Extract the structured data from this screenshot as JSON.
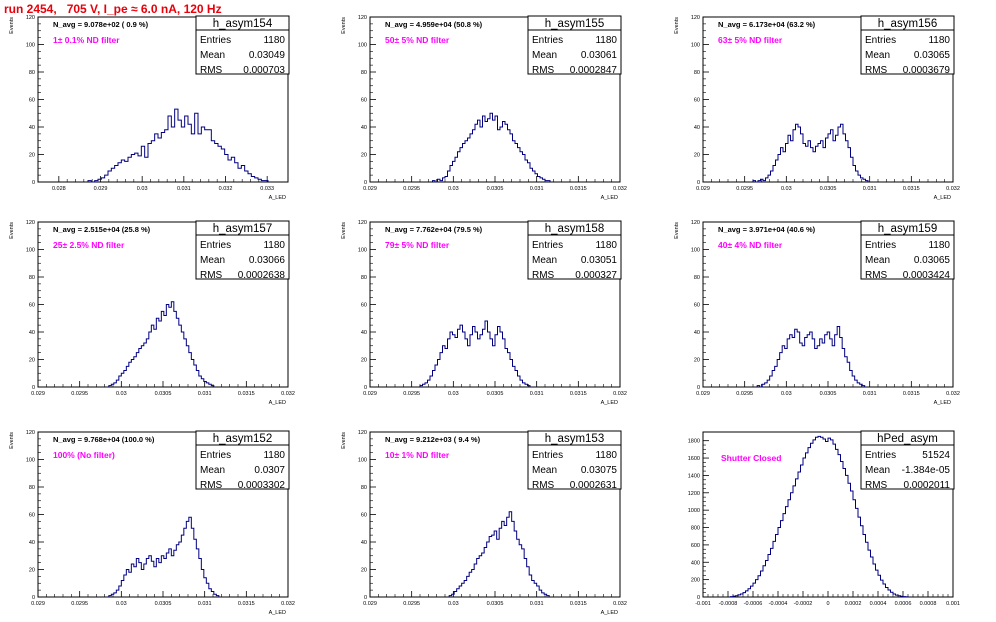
{
  "page_title": "run 2454,   705 V, I_pe ≈ 6.0 nA, 120 Hz",
  "colors": {
    "hist": "#000080",
    "filter_label": "#ff00ff",
    "title": "#e8000b"
  },
  "chart_data": [
    {
      "type": "histogram",
      "hist_name": "h_asym154",
      "navg_text": "N_avg = 9.078e+02 ( 0.9 %)",
      "filter_text": "1± 0.1% ND filter",
      "stats": {
        "entries": "1180",
        "mean": "0.03049",
        "rms": "0.000703"
      },
      "stat_labels": [
        "Entries",
        "Mean",
        "RMS"
      ],
      "ylabel": "Events",
      "xlabel": "A_LED",
      "xlim": [
        0.0275,
        0.0335
      ],
      "ylim": [
        0,
        120
      ],
      "xticks": [
        "0.028",
        "0.029",
        "0.03",
        "0.031",
        "0.032",
        "0.033"
      ],
      "xtick_values": [
        0.028,
        0.029,
        0.03,
        0.031,
        0.032,
        0.033
      ],
      "yticks": [
        0,
        20,
        40,
        60,
        80,
        100,
        120
      ],
      "bin_start": 0.0287,
      "bin_width": 8e-05,
      "counts": [
        1,
        0,
        1,
        2,
        3,
        5,
        8,
        10,
        12,
        14,
        16,
        15,
        18,
        20,
        21,
        19,
        26,
        18,
        28,
        30,
        35,
        32,
        36,
        38,
        48,
        40,
        53,
        45,
        40,
        48,
        42,
        35,
        50,
        35,
        40,
        38,
        38,
        30,
        28,
        26,
        24,
        20,
        16,
        18,
        14,
        10,
        12,
        8,
        6,
        4,
        3,
        2,
        1,
        1
      ]
    },
    {
      "type": "histogram",
      "hist_name": "h_asym155",
      "navg_text": "N_avg = 4.959e+04 (50.8 %)",
      "filter_text": "50± 5% ND filter",
      "stats": {
        "entries": "1180",
        "mean": "0.03061",
        "rms": "0.0002847"
      },
      "stat_labels": [
        "Entries",
        "Mean",
        "RMS"
      ],
      "ylabel": "Events",
      "xlabel": "A_LED",
      "xlim": [
        0.029,
        0.032
      ],
      "ylim": [
        0,
        120
      ],
      "xticks": [
        "0.029",
        "0.0295",
        "0.03",
        "0.0305",
        "0.031",
        "0.0315",
        "0.032"
      ],
      "xtick_values": [
        0.029,
        0.0295,
        0.03,
        0.0305,
        0.031,
        0.0315,
        0.032
      ],
      "yticks": [
        0,
        20,
        40,
        60,
        80,
        100,
        120
      ],
      "bin_start": 0.02975,
      "bin_width": 3e-05,
      "counts": [
        1,
        0,
        2,
        1,
        3,
        4,
        8,
        12,
        15,
        18,
        22,
        25,
        28,
        30,
        32,
        35,
        38,
        42,
        45,
        40,
        48,
        44,
        46,
        50,
        45,
        48,
        38,
        40,
        44,
        42,
        38,
        35,
        30,
        28,
        25,
        22,
        20,
        16,
        14,
        10,
        8,
        6,
        4,
        3,
        2,
        1,
        1
      ]
    },
    {
      "type": "histogram",
      "hist_name": "h_asym156",
      "navg_text": "N_avg = 6.173e+04 (63.2 %)",
      "filter_text": "63± 5% ND filter",
      "stats": {
        "entries": "1180",
        "mean": "0.03065",
        "rms": "0.0003679"
      },
      "stat_labels": [
        "Entries",
        "Mean",
        "RMS"
      ],
      "ylabel": "Events",
      "xlabel": "A_LED",
      "xlim": [
        0.029,
        0.032
      ],
      "ylim": [
        0,
        120
      ],
      "xticks": [
        "0.029",
        "0.0295",
        "0.03",
        "0.0305",
        "0.031",
        "0.0315",
        "0.032"
      ],
      "xtick_values": [
        0.029,
        0.0295,
        0.03,
        0.0305,
        0.031,
        0.0315,
        0.032
      ],
      "yticks": [
        0,
        20,
        40,
        60,
        80,
        100,
        120
      ],
      "bin_start": 0.0296,
      "bin_width": 3e-05,
      "counts": [
        1,
        0,
        1,
        2,
        1,
        3,
        5,
        8,
        12,
        16,
        20,
        25,
        22,
        28,
        34,
        30,
        38,
        42,
        40,
        35,
        28,
        26,
        30,
        25,
        22,
        26,
        28,
        30,
        25,
        32,
        35,
        38,
        30,
        34,
        40,
        42,
        35,
        30,
        25,
        18,
        12,
        8,
        5,
        3,
        2,
        1
      ]
    },
    {
      "type": "histogram",
      "hist_name": "h_asym157",
      "navg_text": "N_avg = 2.515e+04 (25.8 %)",
      "filter_text": "25± 2.5% ND filter",
      "stats": {
        "entries": "1180",
        "mean": "0.03066",
        "rms": "0.0002638"
      },
      "stat_labels": [
        "Entries",
        "Mean",
        "RMS"
      ],
      "ylabel": "Events",
      "xlabel": "A_LED",
      "xlim": [
        0.029,
        0.032
      ],
      "ylim": [
        0,
        120
      ],
      "xticks": [
        "0.029",
        "0.0295",
        "0.03",
        "0.0305",
        "0.031",
        "0.0315",
        "0.032"
      ],
      "xtick_values": [
        0.029,
        0.0295,
        0.03,
        0.0305,
        0.031,
        0.0315,
        0.032
      ],
      "yticks": [
        0,
        20,
        40,
        60,
        80,
        100,
        120
      ],
      "bin_start": 0.02985,
      "bin_width": 3e-05,
      "counts": [
        1,
        2,
        3,
        5,
        8,
        10,
        12,
        15,
        18,
        20,
        22,
        25,
        28,
        30,
        32,
        35,
        40,
        45,
        42,
        50,
        48,
        55,
        52,
        60,
        58,
        62,
        55,
        50,
        45,
        40,
        35,
        30,
        25,
        20,
        16,
        12,
        8,
        6,
        4,
        3,
        2,
        1
      ]
    },
    {
      "type": "histogram",
      "hist_name": "h_asym158",
      "navg_text": "N_avg = 7.762e+04 (79.5 %)",
      "filter_text": "79± 5% ND filter",
      "stats": {
        "entries": "1180",
        "mean": "0.03051",
        "rms": "0.000327"
      },
      "stat_labels": [
        "Entries",
        "Mean",
        "RMS"
      ],
      "ylabel": "Events",
      "xlabel": "A_LED",
      "xlim": [
        0.029,
        0.032
      ],
      "ylim": [
        0,
        120
      ],
      "xticks": [
        "0.029",
        "0.0295",
        "0.03",
        "0.0305",
        "0.031",
        "0.0315",
        "0.032"
      ],
      "xtick_values": [
        0.029,
        0.0295,
        0.03,
        0.0305,
        0.031,
        0.0315,
        0.032
      ],
      "yticks": [
        0,
        20,
        40,
        60,
        80,
        100,
        120
      ],
      "bin_start": 0.0296,
      "bin_width": 3e-05,
      "counts": [
        1,
        2,
        3,
        5,
        8,
        12,
        16,
        20,
        25,
        30,
        28,
        35,
        40,
        38,
        36,
        42,
        45,
        40,
        35,
        30,
        38,
        44,
        40,
        35,
        38,
        42,
        48,
        40,
        35,
        30,
        38,
        44,
        40,
        35,
        28,
        25,
        20,
        15,
        12,
        8,
        5,
        3,
        2,
        1
      ]
    },
    {
      "type": "histogram",
      "hist_name": "h_asym159",
      "navg_text": "N_avg = 3.971e+04 (40.6 %)",
      "filter_text": "40± 4% ND filter",
      "stats": {
        "entries": "1180",
        "mean": "0.03065",
        "rms": "0.0003424"
      },
      "stat_labels": [
        "Entries",
        "Mean",
        "RMS"
      ],
      "ylabel": "Events",
      "xlabel": "A_LED",
      "xlim": [
        0.029,
        0.032
      ],
      "ylim": [
        0,
        120
      ],
      "xticks": [
        "0.029",
        "0.0295",
        "0.03",
        "0.0305",
        "0.031",
        "0.0315",
        "0.032"
      ],
      "xtick_values": [
        0.029,
        0.0295,
        0.03,
        0.0305,
        0.031,
        0.0315,
        0.032
      ],
      "yticks": [
        0,
        20,
        40,
        60,
        80,
        100,
        120
      ],
      "bin_start": 0.02965,
      "bin_width": 3e-05,
      "counts": [
        1,
        0,
        2,
        3,
        5,
        8,
        12,
        15,
        20,
        25,
        30,
        28,
        35,
        38,
        36,
        42,
        40,
        32,
        30,
        36,
        38,
        40,
        35,
        28,
        30,
        35,
        32,
        38,
        40,
        35,
        30,
        38,
        44,
        36,
        28,
        22,
        18,
        12,
        8,
        5,
        3,
        2,
        1
      ]
    },
    {
      "type": "histogram",
      "hist_name": "h_asym152",
      "navg_text": "N_avg = 9.768e+04 (100.0 %)",
      "filter_text": "100% (No filter)",
      "stats": {
        "entries": "1180",
        "mean": "0.0307",
        "rms": "0.0003302"
      },
      "stat_labels": [
        "Entries",
        "Mean",
        "RMS"
      ],
      "ylabel": "Events",
      "xlabel": "A_LED",
      "xlim": [
        0.029,
        0.032
      ],
      "ylim": [
        0,
        120
      ],
      "xticks": [
        "0.029",
        "0.0295",
        "0.03",
        "0.0305",
        "0.031",
        "0.0315",
        "0.032"
      ],
      "xtick_values": [
        0.029,
        0.0295,
        0.03,
        0.0305,
        0.031,
        0.0315,
        0.032
      ],
      "yticks": [
        0,
        20,
        40,
        60,
        80,
        100,
        120
      ],
      "bin_start": 0.02985,
      "bin_width": 3e-05,
      "counts": [
        1,
        2,
        3,
        5,
        8,
        12,
        16,
        20,
        18,
        24,
        22,
        28,
        25,
        20,
        24,
        28,
        30,
        26,
        22,
        28,
        25,
        30,
        28,
        32,
        35,
        30,
        34,
        38,
        40,
        45,
        50,
        55,
        58,
        50,
        42,
        35,
        28,
        20,
        14,
        10,
        6,
        4,
        2,
        1
      ]
    },
    {
      "type": "histogram",
      "hist_name": "h_asym153",
      "navg_text": "N_avg = 9.212e+03 ( 9.4 %)",
      "filter_text": "10± 1% ND filter",
      "stats": {
        "entries": "1180",
        "mean": "0.03075",
        "rms": "0.0002631"
      },
      "stat_labels": [
        "Entries",
        "Mean",
        "RMS"
      ],
      "ylabel": "Events",
      "xlabel": "A_LED",
      "xlim": [
        0.029,
        0.032
      ],
      "ylim": [
        0,
        120
      ],
      "xticks": [
        "0.029",
        "0.0295",
        "0.03",
        "0.0305",
        "0.031",
        "0.0315",
        "0.032"
      ],
      "xtick_values": [
        0.029,
        0.0295,
        0.03,
        0.0305,
        0.031,
        0.0315,
        0.032
      ],
      "yticks": [
        0,
        20,
        40,
        60,
        80,
        100,
        120
      ],
      "bin_start": 0.02995,
      "bin_width": 3e-05,
      "counts": [
        1,
        2,
        4,
        6,
        8,
        10,
        12,
        15,
        18,
        20,
        24,
        28,
        30,
        32,
        36,
        40,
        44,
        45,
        48,
        42,
        50,
        55,
        52,
        58,
        62,
        55,
        48,
        42,
        38,
        35,
        28,
        22,
        16,
        12,
        10,
        8,
        5,
        3,
        2,
        1
      ]
    },
    {
      "type": "histogram",
      "hist_name": "hPed_asym",
      "navg_text": "",
      "filter_text": "Shutter Closed",
      "stats": {
        "entries": "51524",
        "mean": "-1.384e-05",
        "rms": "0.0002011"
      },
      "stat_labels": [
        "Entries",
        "Mean",
        "RMS"
      ],
      "ylabel": "",
      "xlabel": "",
      "xlim": [
        -0.001,
        0.001
      ],
      "ylim": [
        0,
        1900
      ],
      "xticks": [
        "-0.001",
        "-0.0008",
        "-0.0006",
        "-0.0004",
        "-0.0002",
        "0",
        "0.0002",
        "0.0004",
        "0.0006",
        "0.0008",
        "0.001"
      ],
      "xtick_values": [
        -0.001,
        -0.0008,
        -0.0006,
        -0.0004,
        -0.0002,
        0,
        0.0002,
        0.0004,
        0.0006,
        0.0008,
        0.001
      ],
      "yticks": [
        0,
        200,
        400,
        600,
        800,
        1000,
        1200,
        1400,
        1600,
        1800
      ],
      "bin_start": -0.00078,
      "bin_width": 2e-05,
      "counts": [
        5,
        10,
        15,
        25,
        35,
        50,
        70,
        95,
        125,
        160,
        200,
        245,
        300,
        360,
        420,
        490,
        560,
        640,
        720,
        800,
        880,
        960,
        1040,
        1120,
        1200,
        1280,
        1360,
        1440,
        1520,
        1600,
        1660,
        1720,
        1770,
        1810,
        1840,
        1850,
        1840,
        1820,
        1790,
        1830,
        1810,
        1760,
        1700,
        1640,
        1560,
        1480,
        1400,
        1310,
        1220,
        1120,
        1020,
        920,
        820,
        720,
        630,
        540,
        460,
        380,
        310,
        250,
        195,
        150,
        110,
        80,
        55,
        35,
        22,
        14,
        8,
        5,
        3
      ]
    }
  ]
}
